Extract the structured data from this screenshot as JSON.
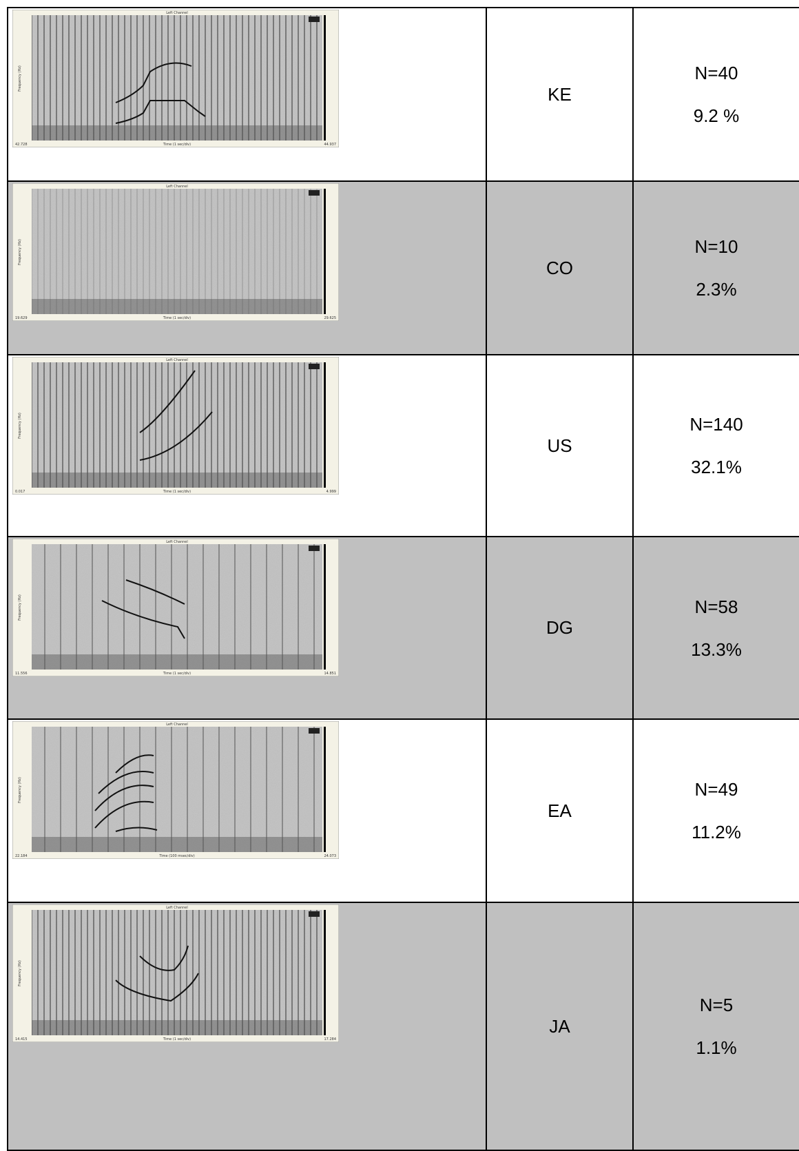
{
  "rows": [
    {
      "spectrogram": {
        "title": "Left Channel",
        "y_label": "Frequency (Hz)",
        "x_label": "Time (1 sec/div)",
        "t_start": "42.728",
        "t_end": "44.937"
      },
      "code": "KE",
      "n": "N=40",
      "percent": "9.2 %"
    },
    {
      "spectrogram": {
        "title": "Left Channel",
        "y_label": "Frequency (Hz)",
        "x_label": "Time (1 sec/div)",
        "t_start": "19.629",
        "t_end": "29.625"
      },
      "code": "CO",
      "n": "N=10",
      "percent": "2.3%"
    },
    {
      "spectrogram": {
        "title": "Left Channel",
        "y_label": "Frequency (Hz)",
        "x_label": "Time (1 sec/div)",
        "t_start": "0.017",
        "t_end": "4.999"
      },
      "code": "US",
      "n": "N=140",
      "percent": "32.1%"
    },
    {
      "spectrogram": {
        "title": "Left Channel",
        "y_label": "Frequency (Hz)",
        "x_label": "Time (1 sec/div)",
        "t_start": "11.556",
        "t_end": "14.851"
      },
      "code": "DG",
      "n": "N=58",
      "percent": "13.3%"
    },
    {
      "spectrogram": {
        "title": "Left Channel",
        "y_label": "Frequency (Hz)",
        "x_label": "Time (100 msec/div)",
        "t_start": "22.184",
        "t_end": "24.073"
      },
      "code": "EA",
      "n": "N=49",
      "percent": "11.2%"
    },
    {
      "spectrogram": {
        "title": "Left Channel",
        "y_label": "Frequency (Hz)",
        "x_label": "Time (1 sec/div)",
        "t_start": "14.415",
        "t_end": "17.284"
      },
      "code": "JA",
      "n": "N=5",
      "percent": "1.1%"
    }
  ]
}
